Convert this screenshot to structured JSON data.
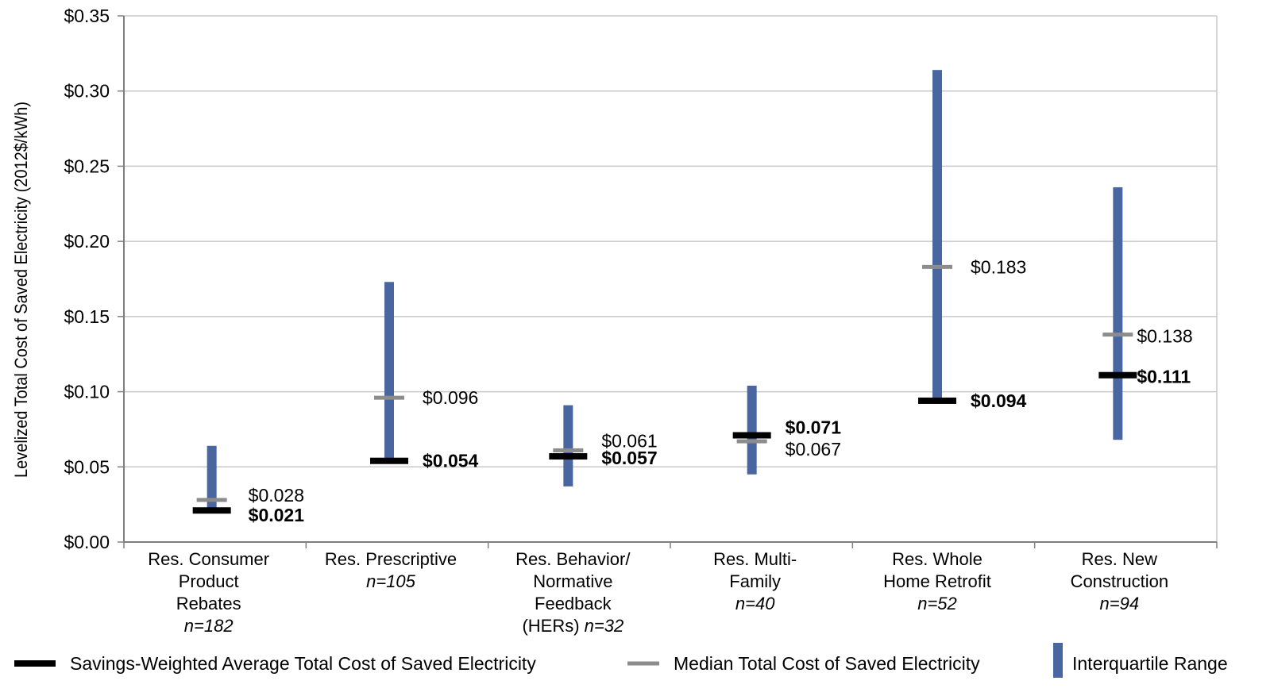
{
  "chart_data": {
    "type": "range",
    "ylabel": "Levelized Total Cost of Saved Electricity (2012$/kWh)",
    "ylim": [
      0,
      0.35
    ],
    "yticks": [
      {
        "value": 0.0,
        "label": "$0.00"
      },
      {
        "value": 0.05,
        "label": "$0.05"
      },
      {
        "value": 0.1,
        "label": "$0.10"
      },
      {
        "value": 0.15,
        "label": "$0.15"
      },
      {
        "value": 0.2,
        "label": "$0.20"
      },
      {
        "value": 0.25,
        "label": "$0.25"
      },
      {
        "value": 0.3,
        "label": "$0.30"
      },
      {
        "value": 0.35,
        "label": "$0.35"
      }
    ],
    "grid": true,
    "colors": {
      "iqr": "#4a66a0",
      "median": "#8c8c8c",
      "weighted_avg": "#000000",
      "grid": "#c8c8c8",
      "axis": "#7f7f7f"
    },
    "categories": [
      {
        "lines": [
          {
            "t": "Res. Consumer"
          },
          {
            "t": "Product"
          },
          {
            "t": "Rebates"
          },
          {
            "t": "n=182",
            "i": true
          }
        ],
        "iqr_low": 0.022,
        "iqr_high": 0.064,
        "median": 0.028,
        "median_label": "$0.028",
        "weighted_avg": 0.021,
        "weighted_avg_label": "$0.021"
      },
      {
        "lines": [
          {
            "t": "Res. Prescriptive"
          },
          {
            "t": "n=105",
            "i": true
          }
        ],
        "iqr_low": 0.055,
        "iqr_high": 0.173,
        "median": 0.096,
        "median_label": "$0.096",
        "weighted_avg": 0.054,
        "weighted_avg_label": "$0.054"
      },
      {
        "lines": [
          {
            "t": "Res. Behavior/"
          },
          {
            "t": "Normative"
          },
          {
            "t": "Feedback"
          },
          {
            "t": "(HERs) ",
            "s": "n=32"
          }
        ],
        "iqr_low": 0.037,
        "iqr_high": 0.091,
        "median": 0.061,
        "median_label": "$0.061",
        "weighted_avg": 0.057,
        "weighted_avg_label": "$0.057"
      },
      {
        "lines": [
          {
            "t": "Res. Multi-"
          },
          {
            "t": "Family"
          },
          {
            "t": "n=40",
            "i": true
          }
        ],
        "iqr_low": 0.045,
        "iqr_high": 0.104,
        "median": 0.067,
        "median_label": "$0.067",
        "weighted_avg": 0.071,
        "weighted_avg_label": "$0.071"
      },
      {
        "lines": [
          {
            "t": "Res. Whole"
          },
          {
            "t": "Home Retrofit"
          },
          {
            "t": "n=52",
            "i": true
          }
        ],
        "iqr_low": 0.092,
        "iqr_high": 0.314,
        "median": 0.183,
        "median_label": "$0.183",
        "weighted_avg": 0.094,
        "weighted_avg_label": "$0.094"
      },
      {
        "lines": [
          {
            "t": "Res. New"
          },
          {
            "t": "Construction"
          },
          {
            "t": "n=94",
            "i": true
          }
        ],
        "iqr_low": 0.068,
        "iqr_high": 0.236,
        "median": 0.138,
        "median_label": "$0.138",
        "weighted_avg": 0.111,
        "weighted_avg_label": "$0.111"
      }
    ],
    "legend": {
      "placement": "bottom",
      "items": [
        {
          "key": "weighted_avg",
          "label": "Savings-Weighted Average Total Cost of Saved Electricity"
        },
        {
          "key": "median",
          "label": "Median Total Cost of Saved Electricity"
        },
        {
          "key": "iqr",
          "label": "Interquartile Range"
        }
      ]
    }
  }
}
